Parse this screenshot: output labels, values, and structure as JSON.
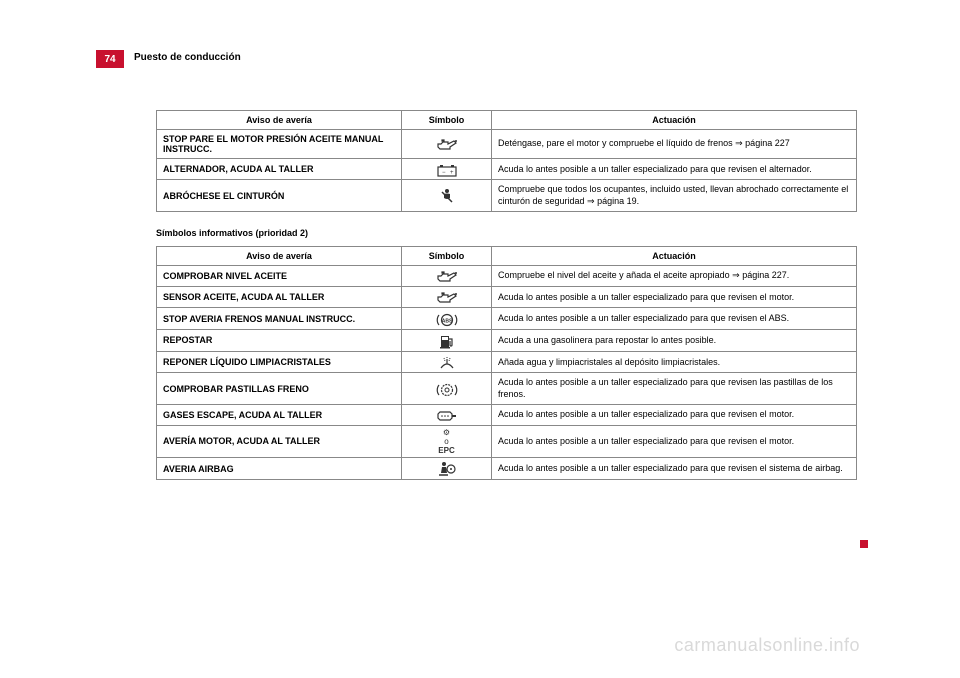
{
  "page_number": "74",
  "section_title": "Puesto de conducción",
  "watermark": "carmanualsonline.info",
  "table1": {
    "headers": {
      "aviso": "Aviso de avería",
      "simbolo": "Símbolo",
      "actuacion": "Actuación"
    },
    "rows": [
      {
        "aviso": "STOP PARE EL MOTOR PRESIÓN ACEITE MANUAL INSTRUCC.",
        "icon": "oil",
        "act": "Deténgase, pare el motor y compruebe el líquido de frenos ⇒ página 227"
      },
      {
        "aviso": "ALTERNADOR, ACUDA AL TALLER",
        "icon": "battery",
        "act": "Acuda lo antes posible a un taller especializado para que revisen el alternador."
      },
      {
        "aviso": "ABRÓCHESE EL CINTURÓN",
        "icon": "seatbelt",
        "act": "Compruebe que todos los ocupantes, incluido usted, llevan abrochado correctamente el cinturón de seguridad ⇒ página 19."
      }
    ]
  },
  "subtitle": "Símbolos informativos (prioridad 2)",
  "table2": {
    "headers": {
      "aviso": "Aviso de avería",
      "simbolo": "Símbolo",
      "actuacion": "Actuación"
    },
    "rows": [
      {
        "aviso": "COMPROBAR NIVEL ACEITE",
        "icon": "oil",
        "act": "Compruebe el nivel del aceite y añada el aceite apropiado ⇒ página 227."
      },
      {
        "aviso": "SENSOR ACEITE, ACUDA AL TALLER",
        "icon": "oil",
        "act": "Acuda lo antes posible a un taller especializado para que revisen el motor."
      },
      {
        "aviso": "STOP AVERIA FRENOS MANUAL INSTRUCC.",
        "icon": "abs",
        "act": "Acuda lo antes posible a un taller especializado para que revisen el ABS."
      },
      {
        "aviso": "REPOSTAR",
        "icon": "fuel",
        "act": "Acuda a una gasolinera para repostar lo antes posible."
      },
      {
        "aviso": "REPONER LÍQUIDO LIMPIACRISTALES",
        "icon": "washer",
        "act": "Añada agua y limpiacristales al depósito limpiacristales."
      },
      {
        "aviso": "COMPROBAR PASTILLAS FRENO",
        "icon": "brakepad",
        "act": "Acuda lo antes posible a un taller especializado para que revisen las pastillas de los frenos."
      },
      {
        "aviso": "GASES ESCAPE, ACUDA AL TALLER",
        "icon": "exhaust",
        "act": "Acuda lo antes posible a un taller especializado para que revisen el motor."
      },
      {
        "aviso": "AVERÍA MOTOR, ACUDA AL TALLER",
        "icon": "epc",
        "act": "Acuda lo antes posible a un taller especializado para que revisen el motor."
      },
      {
        "aviso": "AVERIA AIRBAG",
        "icon": "airbag",
        "act": "Acuda lo antes posible a un taller especializado para que revisen el sistema de airbag."
      }
    ]
  },
  "colors": {
    "accent": "#c8102e",
    "border": "#888888",
    "text": "#000000",
    "watermark": "#d9d9d9",
    "icon": "#333333"
  }
}
